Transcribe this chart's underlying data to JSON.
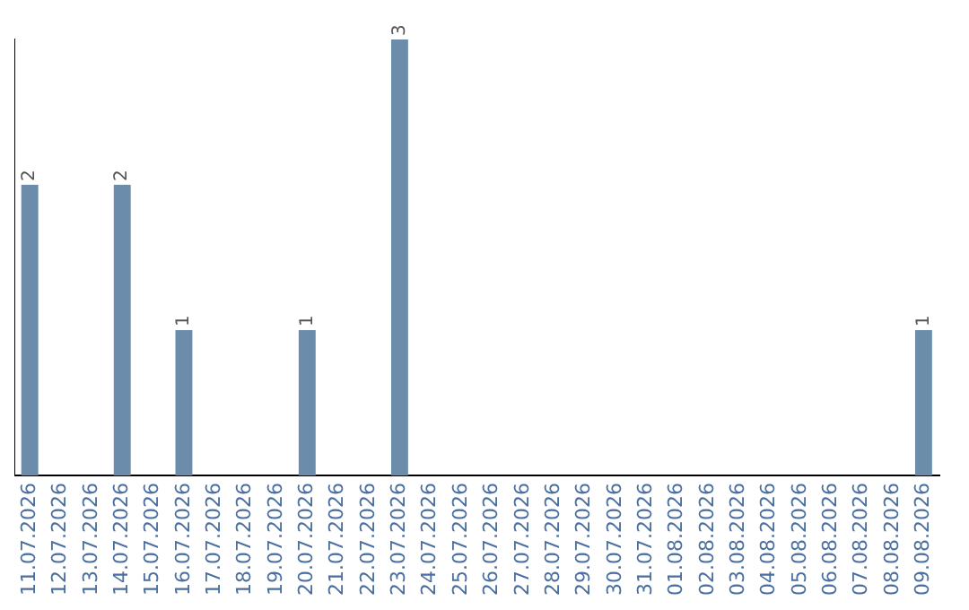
{
  "chart_data": {
    "type": "bar",
    "categories": [
      "11.07.2026",
      "12.07.2026",
      "13.07.2026",
      "14.07.2026",
      "15.07.2026",
      "16.07.2026",
      "17.07.2026",
      "18.07.2026",
      "19.07.2026",
      "20.07.2026",
      "21.07.2026",
      "22.07.2026",
      "23.07.2026",
      "24.07.2026",
      "25.07.2026",
      "26.07.2026",
      "27.07.2026",
      "28.07.2026",
      "29.07.2026",
      "30.07.2026",
      "31.07.2026",
      "01.08.2026",
      "02.08.2026",
      "03.08.2026",
      "04.08.2026",
      "05.08.2026",
      "06.08.2026",
      "07.08.2026",
      "08.08.2026",
      "09.08.2026"
    ],
    "values": [
      2,
      0,
      0,
      2,
      0,
      1,
      0,
      0,
      0,
      1,
      0,
      0,
      3,
      0,
      0,
      0,
      0,
      0,
      0,
      0,
      0,
      0,
      0,
      0,
      0,
      0,
      0,
      0,
      0,
      1
    ],
    "value_labels": [
      "2",
      null,
      null,
      "2",
      null,
      "1",
      null,
      null,
      null,
      "1",
      null,
      null,
      "3",
      null,
      null,
      null,
      null,
      null,
      null,
      null,
      null,
      null,
      null,
      null,
      null,
      null,
      null,
      null,
      null,
      "1"
    ],
    "color": "#6b8cab",
    "grid": false,
    "legend": false,
    "tick_labels": "x"
  }
}
